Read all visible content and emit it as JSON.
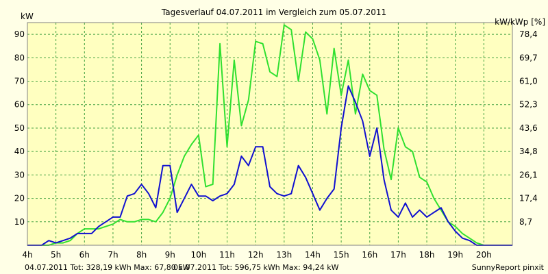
{
  "chart_data": {
    "type": "line",
    "title": "Tagesverlauf 04.07.2011 im Vergleich zum 05.07.2011",
    "ylabel_left": "kW",
    "ylabel_right": "kW/kWp [%]",
    "footer_left_a": "04.07.2011 Tot: 328,19 kWh Max: 67,80 kW",
    "footer_left_b": "05.07.2011 Tot: 596,75 kWh Max: 94,24 kW",
    "footer_right": "SunnyReport pinxit",
    "x_ticks": [
      "4h",
      "5h",
      "6h",
      "7h",
      "8h",
      "9h",
      "10h",
      "11h",
      "12h",
      "13h",
      "14h",
      "15h",
      "16h",
      "17h",
      "18h",
      "19h",
      "20h"
    ],
    "x_range": [
      4,
      21
    ],
    "ylim": [
      0,
      95
    ],
    "y_ticks": [
      10,
      20,
      30,
      40,
      50,
      60,
      70,
      80,
      90
    ],
    "y_right_ticks": [
      "8,7",
      "17,4",
      "26,1",
      "34,8",
      "43,6",
      "52,3",
      "61,0",
      "69,7",
      "78,4"
    ],
    "grid": true,
    "series": [
      {
        "name": "04.07.2011",
        "color": "#1010d0",
        "x": [
          4.0,
          4.5,
          4.75,
          5.0,
          5.25,
          5.5,
          5.75,
          6.0,
          6.25,
          6.5,
          6.75,
          7.0,
          7.25,
          7.5,
          7.75,
          8.0,
          8.25,
          8.5,
          8.75,
          9.0,
          9.25,
          9.5,
          9.75,
          10.0,
          10.25,
          10.5,
          10.75,
          11.0,
          11.25,
          11.5,
          11.75,
          12.0,
          12.25,
          12.5,
          12.75,
          13.0,
          13.25,
          13.5,
          13.75,
          14.0,
          14.25,
          14.5,
          14.75,
          15.0,
          15.25,
          15.5,
          15.75,
          16.0,
          16.25,
          16.5,
          16.75,
          17.0,
          17.25,
          17.5,
          17.75,
          18.0,
          18.25,
          18.5,
          18.75,
          19.0,
          19.25,
          19.5,
          19.75,
          20.0,
          20.25,
          20.5,
          20.75,
          21.0
        ],
        "y": [
          0,
          0,
          2,
          1,
          2,
          3,
          5,
          5,
          5,
          8,
          10,
          12,
          12,
          21,
          22,
          26,
          22,
          16,
          34,
          34,
          14,
          20,
          26,
          21,
          21,
          19,
          21,
          22,
          26,
          38,
          34,
          42,
          42,
          25,
          22,
          21,
          22,
          34,
          29,
          22,
          15,
          20,
          24,
          50,
          68,
          61,
          53,
          38,
          50,
          28,
          15,
          12,
          18,
          12,
          15,
          12,
          14,
          16,
          10,
          6,
          3,
          2,
          0,
          0,
          0,
          0,
          0,
          0
        ]
      },
      {
        "name": "05.07.2011",
        "color": "#30e030",
        "x": [
          4.0,
          4.5,
          4.75,
          5.0,
          5.25,
          5.5,
          5.75,
          6.0,
          6.25,
          6.5,
          6.75,
          7.0,
          7.25,
          7.5,
          7.75,
          8.0,
          8.25,
          8.5,
          8.75,
          9.0,
          9.25,
          9.5,
          9.75,
          10.0,
          10.25,
          10.5,
          10.75,
          11.0,
          11.25,
          11.5,
          11.75,
          12.0,
          12.25,
          12.5,
          12.75,
          13.0,
          13.25,
          13.5,
          13.75,
          14.0,
          14.25,
          14.5,
          14.75,
          15.0,
          15.25,
          15.5,
          15.75,
          16.0,
          16.25,
          16.5,
          16.75,
          17.0,
          17.25,
          17.5,
          17.75,
          18.0,
          18.25,
          18.5,
          18.75,
          19.0,
          19.25,
          19.5,
          19.75,
          20.0,
          20.25,
          20.5,
          20.75,
          21.0
        ],
        "y": [
          0,
          0,
          0,
          1,
          1,
          2,
          5,
          7,
          7,
          7,
          8,
          9,
          11,
          10,
          10,
          11,
          11,
          10,
          14,
          20,
          30,
          38,
          43,
          47,
          25,
          26,
          86,
          42,
          79,
          51,
          62,
          87,
          86,
          74,
          72,
          94,
          92,
          70,
          91,
          88,
          79,
          56,
          84,
          64,
          79,
          56,
          73,
          66,
          64,
          41,
          28,
          50,
          42,
          40,
          29,
          27,
          20,
          15,
          10,
          8,
          5,
          3,
          1,
          0,
          0,
          0,
          0,
          0
        ]
      }
    ]
  }
}
